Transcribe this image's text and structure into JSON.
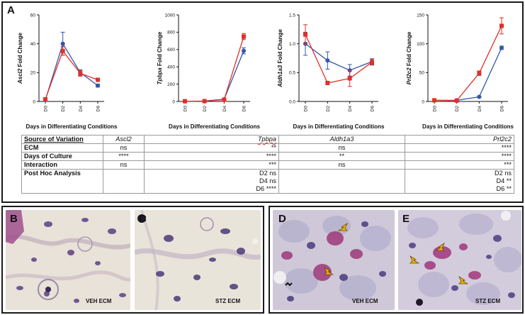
{
  "panels": {
    "a": "A",
    "b": "B",
    "c": "C",
    "d": "D",
    "e": "E"
  },
  "series_colors": {
    "blue": "#3355aa",
    "red": "#e0302a"
  },
  "chart_data": [
    {
      "type": "line",
      "ylabel_gene": "Ascl2",
      "ylabel_suffix": " Fold Change",
      "xlabel": "Days in Differentiating Conditions",
      "categories": [
        "D0",
        "D2",
        "D4",
        "D6"
      ],
      "ylim": [
        0,
        60
      ],
      "yticks": [
        0,
        20,
        40,
        60
      ],
      "series": [
        {
          "color": "#3355aa",
          "marker": "circle",
          "values": [
            1,
            40,
            20,
            11
          ],
          "err": [
            0.5,
            8,
            2,
            1
          ]
        },
        {
          "color": "#e0302a",
          "marker": "square",
          "values": [
            1.5,
            35,
            19.5,
            15
          ],
          "err": [
            0.5,
            3,
            2,
            1
          ]
        }
      ]
    },
    {
      "type": "line",
      "ylabel_gene": "Tpbpa",
      "ylabel_suffix": " Fold Change",
      "xlabel": "Days in Differentiating Conditions",
      "categories": [
        "D0",
        "D2",
        "D4",
        "D6"
      ],
      "ylim": [
        0,
        1000
      ],
      "yticks": [
        0,
        200,
        400,
        600,
        800,
        1000
      ],
      "series": [
        {
          "color": "#3355aa",
          "marker": "circle",
          "values": [
            2,
            5,
            25,
            585
          ],
          "err": [
            1,
            2,
            5,
            35
          ]
        },
        {
          "color": "#e0302a",
          "marker": "square",
          "values": [
            3,
            4,
            20,
            750
          ],
          "err": [
            1,
            2,
            5,
            35
          ]
        }
      ]
    },
    {
      "type": "line",
      "ylabel_gene": "Aldh1a3",
      "ylabel_suffix": " Fold Change",
      "xlabel": "Days in Differentiating Conditions",
      "categories": [
        "D0",
        "D2",
        "D4",
        "D6"
      ],
      "ylim": [
        0,
        1.5
      ],
      "yticks": [
        0.0,
        0.5,
        1.0,
        1.5
      ],
      "tickdecimals": 1,
      "series": [
        {
          "color": "#3355aa",
          "marker": "circle",
          "values": [
            1.0,
            0.71,
            0.54,
            0.69
          ],
          "err": [
            0.2,
            0.15,
            0.1,
            0.05
          ]
        },
        {
          "color": "#e0302a",
          "marker": "square",
          "values": [
            1.16,
            0.32,
            0.4,
            0.68
          ],
          "err": [
            0.17,
            0.03,
            0.14,
            0.05
          ]
        }
      ]
    },
    {
      "type": "line",
      "ylabel_gene": "Prl2c2",
      "ylabel_suffix": " Fold Change",
      "xlabel": "Days in Differentiating Conditions",
      "categories": [
        "D0",
        "D2",
        "D4",
        "D6"
      ],
      "ylim": [
        0,
        150
      ],
      "yticks": [
        0,
        50,
        100,
        150
      ],
      "series": [
        {
          "color": "#3355aa",
          "marker": "circle",
          "values": [
            2,
            2,
            8,
            93
          ],
          "err": [
            1,
            1,
            1,
            3
          ]
        },
        {
          "color": "#e0302a",
          "marker": "square",
          "values": [
            2,
            1.5,
            49,
            131
          ],
          "err": [
            1,
            1,
            4,
            14
          ]
        }
      ]
    }
  ],
  "stats": {
    "header": {
      "source": "Source of Variation",
      "ascl2": "Ascl2",
      "tpbpa": "Tpbpa",
      "aldh": "Aldh1a3",
      "prl": "Prl2c2"
    },
    "rows": {
      "ecm": {
        "label": "ECM",
        "ascl2": "ns",
        "tpbpa": "**",
        "aldh": "ns",
        "prl": "****"
      },
      "days": {
        "label": "Days of Culture",
        "ascl2": "****",
        "tpbpa": "****",
        "aldh": "**",
        "prl": "****"
      },
      "interaction": {
        "label": "Interaction",
        "ascl2": "ns",
        "tpbpa": "***",
        "aldh": "ns",
        "prl": "***"
      },
      "posthoc": {
        "label": "Post Hoc Analysis",
        "tpbpa": [
          "D2 ns",
          "D4 ns",
          "D6 ****"
        ],
        "prl": [
          "D2 ns",
          "D4 **",
          "D6 **"
        ]
      }
    }
  },
  "photos": {
    "b_label": "VEH ECM",
    "c_label": "STZ ECM",
    "d_label": "VEH ECM",
    "e_label": "STZ ECM"
  }
}
